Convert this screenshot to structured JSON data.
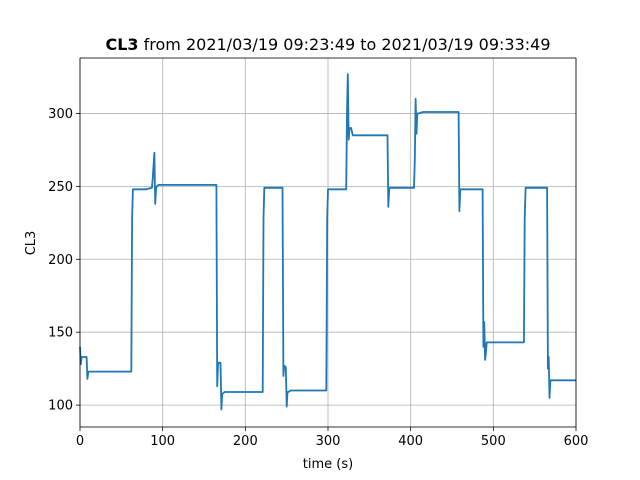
{
  "chart_data": {
    "type": "line",
    "title_bold": "CL3",
    "title_rest": " from 2021/03/19 09:23:49 to 2021/03/19 09:33:49",
    "xlabel": "time (s)",
    "ylabel": "CL3",
    "xlim": [
      0,
      600
    ],
    "ylim": [
      85,
      338
    ],
    "xticks": [
      0,
      100,
      200,
      300,
      400,
      500,
      600
    ],
    "yticks": [
      100,
      150,
      200,
      250,
      300
    ],
    "grid": true,
    "line_color": "#1f77b4",
    "series": [
      {
        "x": [
          0,
          1,
          2,
          3,
          8,
          9,
          10,
          12,
          20,
          40,
          62,
          63,
          64,
          66,
          70,
          80,
          87,
          88,
          89,
          90,
          91,
          92,
          93,
          95,
          100,
          120,
          150,
          165,
          166,
          167,
          170,
          171,
          172,
          173,
          175,
          180,
          200,
          221,
          222,
          223,
          224,
          226,
          230,
          240,
          245,
          246,
          247,
          249,
          250,
          251,
          252,
          255,
          260,
          280,
          298,
          299,
          300,
          302,
          310,
          320,
          322,
          323,
          324,
          325,
          326,
          327,
          328,
          330,
          335,
          336,
          337,
          340,
          350,
          360,
          372,
          373,
          374,
          375,
          376,
          380,
          390,
          400,
          404,
          405,
          406,
          407,
          408,
          409,
          410,
          415,
          420,
          440,
          458,
          459,
          460,
          461,
          462,
          470,
          480,
          487,
          488,
          489,
          490,
          491,
          492,
          495,
          500,
          520,
          537,
          538,
          539,
          541,
          545,
          560,
          565,
          566,
          567,
          568,
          569,
          570,
          575,
          590,
          600
        ],
        "y": [
          140,
          128,
          133,
          133,
          133,
          118,
          123,
          123,
          123,
          123,
          123,
          228,
          248,
          248,
          248,
          248,
          249,
          255,
          265,
          273,
          238,
          249,
          250,
          251,
          251,
          251,
          251,
          251,
          113,
          129,
          129,
          97,
          108,
          108,
          109,
          109,
          109,
          109,
          228,
          249,
          249,
          249,
          249,
          249,
          249,
          120,
          127,
          126,
          99,
          109,
          109,
          110,
          110,
          110,
          110,
          228,
          248,
          248,
          248,
          248,
          248,
          300,
          327,
          282,
          290,
          290,
          290,
          285,
          285,
          285,
          285,
          285,
          285,
          285,
          285,
          236,
          248,
          249,
          249,
          249,
          249,
          249,
          249,
          268,
          310,
          286,
          300,
          300,
          300,
          301,
          301,
          301,
          301,
          233,
          248,
          248,
          248,
          248,
          248,
          248,
          140,
          157,
          131,
          136,
          143,
          143,
          143,
          143,
          143,
          228,
          249,
          249,
          249,
          249,
          249,
          125,
          133,
          105,
          117,
          117,
          117,
          117,
          117
        ]
      }
    ]
  }
}
